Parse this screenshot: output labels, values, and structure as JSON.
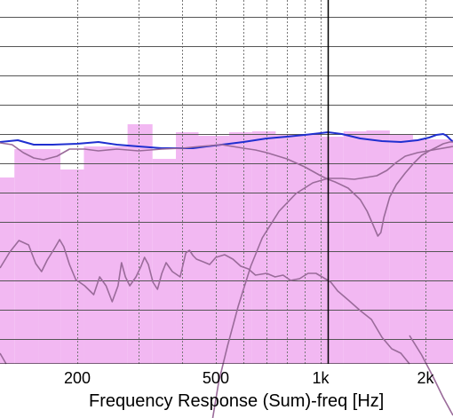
{
  "chart_data": {
    "type": "line",
    "title": "",
    "xlabel": "Frequency Response (Sum)-freq [Hz]",
    "ylabel": "",
    "x_scale": "log",
    "xlim": [
      120,
      2400
    ],
    "x_ticks": [
      {
        "value": 200,
        "label": "200"
      },
      {
        "value": 500,
        "label": "500"
      },
      {
        "value": 1000,
        "label": "1k"
      },
      {
        "value": 2000,
        "label": "2k"
      }
    ],
    "grid": true,
    "cursor_x": 1050,
    "bars": {
      "name": "",
      "color": "#f2b8f2",
      "edges": [
        120,
        132,
        155,
        179,
        209,
        279,
        329,
        384,
        446,
        546,
        636,
        743,
        856,
        998,
        1164,
        1353,
        1580,
        1842,
        2400
      ],
      "tops": [
        200,
        168,
        168,
        191,
        165,
        140,
        179,
        149,
        153,
        149,
        148,
        151,
        151,
        154,
        148,
        147,
        152,
        157
      ]
    },
    "series": [
      {
        "color": "#1f2fd0",
        "points": [
          [
            120,
            160
          ],
          [
            135,
            158
          ],
          [
            150,
            163
          ],
          [
            170,
            163
          ],
          [
            200,
            162
          ],
          [
            230,
            160
          ],
          [
            260,
            163
          ],
          [
            300,
            165
          ],
          [
            350,
            167
          ],
          [
            400,
            167
          ],
          [
            430,
            167
          ],
          [
            470,
            165
          ],
          [
            520,
            163
          ],
          [
            600,
            160
          ],
          [
            700,
            156
          ],
          [
            800,
            154
          ],
          [
            900,
            152
          ],
          [
            1000,
            150
          ],
          [
            1050,
            149
          ],
          [
            1150,
            151
          ],
          [
            1300,
            156
          ],
          [
            1500,
            159
          ],
          [
            1700,
            160
          ],
          [
            1900,
            158
          ],
          [
            2050,
            155
          ],
          [
            2150,
            152
          ],
          [
            2250,
            151
          ],
          [
            2300,
            153
          ],
          [
            2400,
            160
          ]
        ]
      },
      {
        "color": "#9a6b9a",
        "points": [
          [
            120,
            161
          ],
          [
            130,
            163
          ],
          [
            140,
            172
          ],
          [
            150,
            178
          ],
          [
            160,
            180
          ],
          [
            175,
            176
          ],
          [
            190,
            168
          ],
          [
            210,
            168
          ],
          [
            230,
            170
          ],
          [
            260,
            168
          ],
          [
            300,
            170
          ],
          [
            350,
            168
          ],
          [
            400,
            167
          ],
          [
            450,
            165
          ],
          [
            520,
            163
          ],
          [
            600,
            167
          ],
          [
            650,
            169
          ],
          [
            700,
            172
          ],
          [
            800,
            179
          ],
          [
            900,
            188
          ],
          [
            1000,
            198
          ],
          [
            1050,
            202
          ],
          [
            1100,
            205
          ],
          [
            1200,
            212
          ],
          [
            1300,
            225
          ],
          [
            1360,
            238
          ],
          [
            1420,
            255
          ],
          [
            1460,
            266
          ],
          [
            1490,
            262
          ],
          [
            1520,
            245
          ],
          [
            1580,
            222
          ],
          [
            1650,
            208
          ],
          [
            1750,
            195
          ],
          [
            1850,
            184
          ],
          [
            1950,
            175
          ],
          [
            2050,
            170
          ],
          [
            2150,
            166
          ],
          [
            2250,
            162
          ],
          [
            2350,
            160
          ],
          [
            2400,
            160
          ]
        ]
      },
      {
        "color": "#9a6b9a",
        "points": [
          [
            490,
            471
          ],
          [
            510,
            430
          ],
          [
            540,
            390
          ],
          [
            580,
            345
          ],
          [
            630,
            300
          ],
          [
            680,
            268
          ],
          [
            760,
            238
          ],
          [
            850,
            218
          ],
          [
            950,
            206
          ],
          [
            1050,
            201
          ],
          [
            1150,
            201
          ],
          [
            1250,
            202
          ],
          [
            1350,
            200
          ],
          [
            1450,
            198
          ],
          [
            1550,
            192
          ],
          [
            1650,
            183
          ],
          [
            1750,
            176
          ],
          [
            1900,
            172
          ],
          [
            2100,
            169
          ],
          [
            2400,
            165
          ]
        ]
      },
      {
        "color": "#9a6b9a",
        "points": [
          [
            120,
            302
          ],
          [
            128,
            284
          ],
          [
            136,
            271
          ],
          [
            145,
            276
          ],
          [
            152,
            297
          ],
          [
            158,
            306
          ],
          [
            164,
            293
          ],
          [
            172,
            280
          ],
          [
            178,
            270
          ],
          [
            183,
            278
          ],
          [
            190,
            298
          ],
          [
            198,
            315
          ],
          [
            210,
            322
          ],
          [
            223,
            332
          ],
          [
            232,
            312
          ],
          [
            242,
            322
          ],
          [
            252,
            340
          ],
          [
            262,
            322
          ],
          [
            268,
            296
          ],
          [
            275,
            312
          ],
          [
            283,
            322
          ],
          [
            295,
            312
          ],
          [
            305,
            300
          ],
          [
            312,
            290
          ],
          [
            320,
            298
          ],
          [
            330,
            318
          ],
          [
            340,
            326
          ],
          [
            350,
            308
          ],
          [
            360,
            296
          ],
          [
            375,
            306
          ],
          [
            395,
            312
          ],
          [
            410,
            285
          ],
          [
            420,
            282
          ],
          [
            430,
            288
          ],
          [
            440,
            292
          ],
          [
            460,
            295
          ],
          [
            480,
            298
          ],
          [
            500,
            290
          ],
          [
            530,
            287
          ],
          [
            560,
            292
          ],
          [
            590,
            300
          ],
          [
            620,
            303
          ],
          [
            650,
            310
          ],
          [
            700,
            308
          ],
          [
            740,
            312
          ],
          [
            780,
            310
          ],
          [
            820,
            316
          ],
          [
            870,
            314
          ],
          [
            920,
            308
          ],
          [
            970,
            308
          ],
          [
            1020,
            313
          ],
          [
            1070,
            318
          ],
          [
            1120,
            328
          ],
          [
            1200,
            338
          ],
          [
            1300,
            350
          ],
          [
            1400,
            360
          ],
          [
            1500,
            380
          ],
          [
            1600,
            393
          ],
          [
            1700,
            398
          ],
          [
            1800,
            410
          ]
        ]
      },
      {
        "color": "#9a6b9a",
        "points": [
          [
            120,
            398
          ],
          [
            125,
            410
          ]
        ]
      },
      {
        "color": "#9a6b9a",
        "points": [
          [
            1800,
            378
          ],
          [
            1950,
            400
          ],
          [
            2100,
            424
          ],
          [
            2250,
            448
          ],
          [
            2400,
            468
          ]
        ]
      }
    ]
  }
}
